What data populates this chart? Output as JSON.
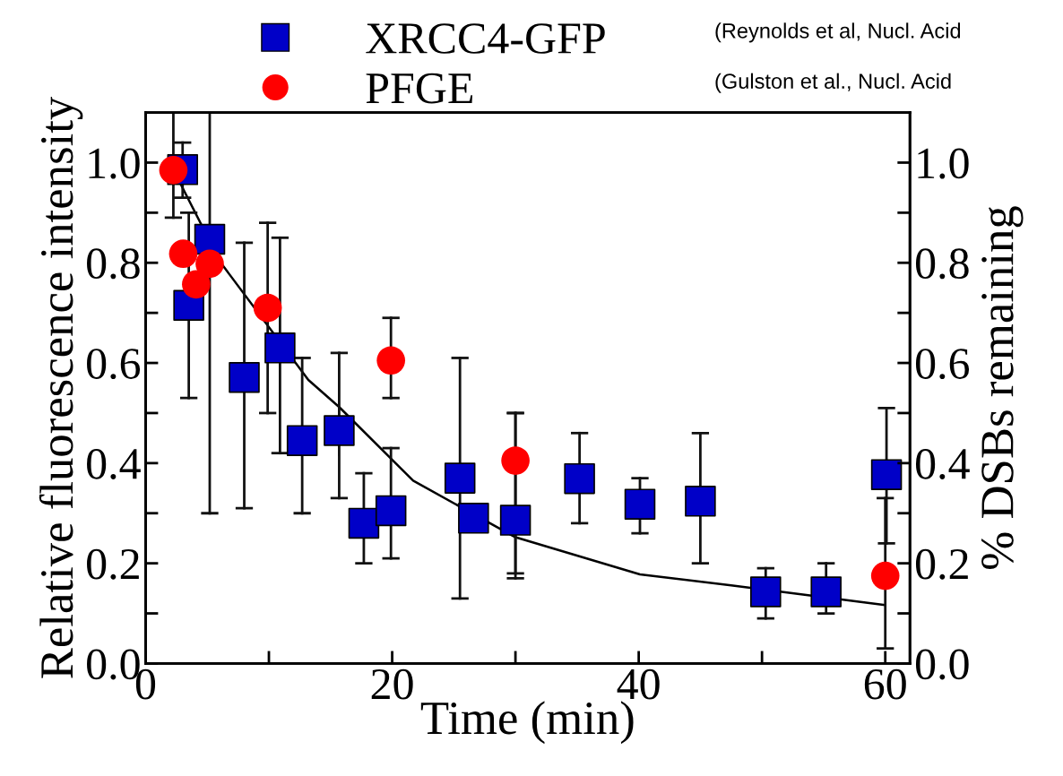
{
  "chart_data": {
    "type": "scatter",
    "xlabel": "Time (min)",
    "ylabel": "Relative fluorescence intensity",
    "y2label": "% DSBs remaining",
    "xlim": [
      0,
      62
    ],
    "ylim": [
      0,
      1.1
    ],
    "y2lim": [
      0,
      1.1
    ],
    "xticks": [
      0,
      {
        "value": 10,
        "label": null
      },
      20,
      {
        "value": 30,
        "label": null
      },
      40,
      {
        "value": 50,
        "label": null
      },
      60
    ],
    "yticks": [
      {
        "value": 0,
        "label": "0.0"
      },
      {
        "value": 0.1,
        "label": null
      },
      0.2,
      {
        "value": 0.3,
        "label": null
      },
      0.4,
      {
        "value": 0.5,
        "label": null
      },
      0.6,
      {
        "value": 0.7,
        "label": null
      },
      0.8,
      {
        "value": 0.9,
        "label": null
      },
      {
        "value": 1,
        "label": "1.0"
      }
    ],
    "y2ticks": [
      {
        "value": 0,
        "label": "0.0"
      },
      {
        "value": 0.1,
        "label": null
      },
      0.2,
      {
        "value": 0.3,
        "label": null
      },
      0.4,
      {
        "value": 0.5,
        "label": null
      },
      0.6,
      {
        "value": 0.7,
        "label": null
      },
      0.8,
      {
        "value": 0.9,
        "label": null
      },
      {
        "value": 1,
        "label": "1.0"
      }
    ],
    "legend": "top",
    "grid": false,
    "annotations": [
      "(Reynolds et al, Nucl. Acid",
      "(Gulston et al., Nucl. Acid"
    ],
    "series": [
      {
        "name": "XRCC4-GFP",
        "color": "#0000c8",
        "marker": "square",
        "x": [
          3.0,
          3.5,
          5.2,
          8.0,
          10.9,
          12.7,
          15.7,
          17.7,
          19.9,
          25.5,
          26.6,
          30.0,
          35.2,
          40.1,
          45.0,
          50.3,
          55.2,
          60.1
        ],
        "values": [
          0.986,
          0.715,
          0.847,
          0.571,
          0.63,
          0.445,
          0.465,
          0.28,
          0.305,
          0.37,
          0.29,
          0.286,
          0.369,
          0.318,
          0.324,
          0.143,
          0.143,
          0.377
        ],
        "errors": [
          [
            0.93,
            1.04
          ],
          [
            0.53,
            0.9
          ],
          [
            0.3,
            1.1
          ],
          [
            0.31,
            0.84
          ],
          [
            0.42,
            0.85
          ],
          [
            0.3,
            0.61
          ],
          [
            0.33,
            0.62
          ],
          [
            0.2,
            0.38
          ],
          [
            0.21,
            0.43
          ],
          [
            0.13,
            0.61
          ],
          null,
          [
            0.17,
            0.5
          ],
          [
            0.28,
            0.46
          ],
          [
            0.26,
            0.37
          ],
          [
            0.2,
            0.46
          ],
          [
            0.09,
            0.19
          ],
          [
            0.1,
            0.2
          ],
          [
            0.24,
            0.51
          ]
        ]
      },
      {
        "name": "PFGE",
        "color": "#ff0000",
        "marker": "circle",
        "x": [
          2.25,
          3.05,
          4.1,
          5.2,
          9.9,
          19.9,
          30.0,
          60.0
        ],
        "values": [
          0.985,
          0.818,
          0.757,
          0.798,
          0.71,
          0.605,
          0.405,
          0.175
        ],
        "errors": [
          [
            0.89,
            1.1
          ],
          null,
          null,
          null,
          [
            0.5,
            0.88
          ],
          [
            0.53,
            0.69
          ],
          [
            0.18,
            0.5
          ],
          [
            0.03,
            0.33
          ]
        ]
      },
      {
        "type": "line",
        "color": "#000000",
        "marker": "none",
        "x": [
          2.8,
          6.1,
          13.2,
          15.7,
          21.7,
          30.0,
          40.1,
          47.5,
          59.9
        ],
        "values": [
          0.959,
          0.8,
          0.566,
          0.512,
          0.365,
          0.252,
          0.178,
          0.156,
          0.117
        ]
      }
    ]
  }
}
